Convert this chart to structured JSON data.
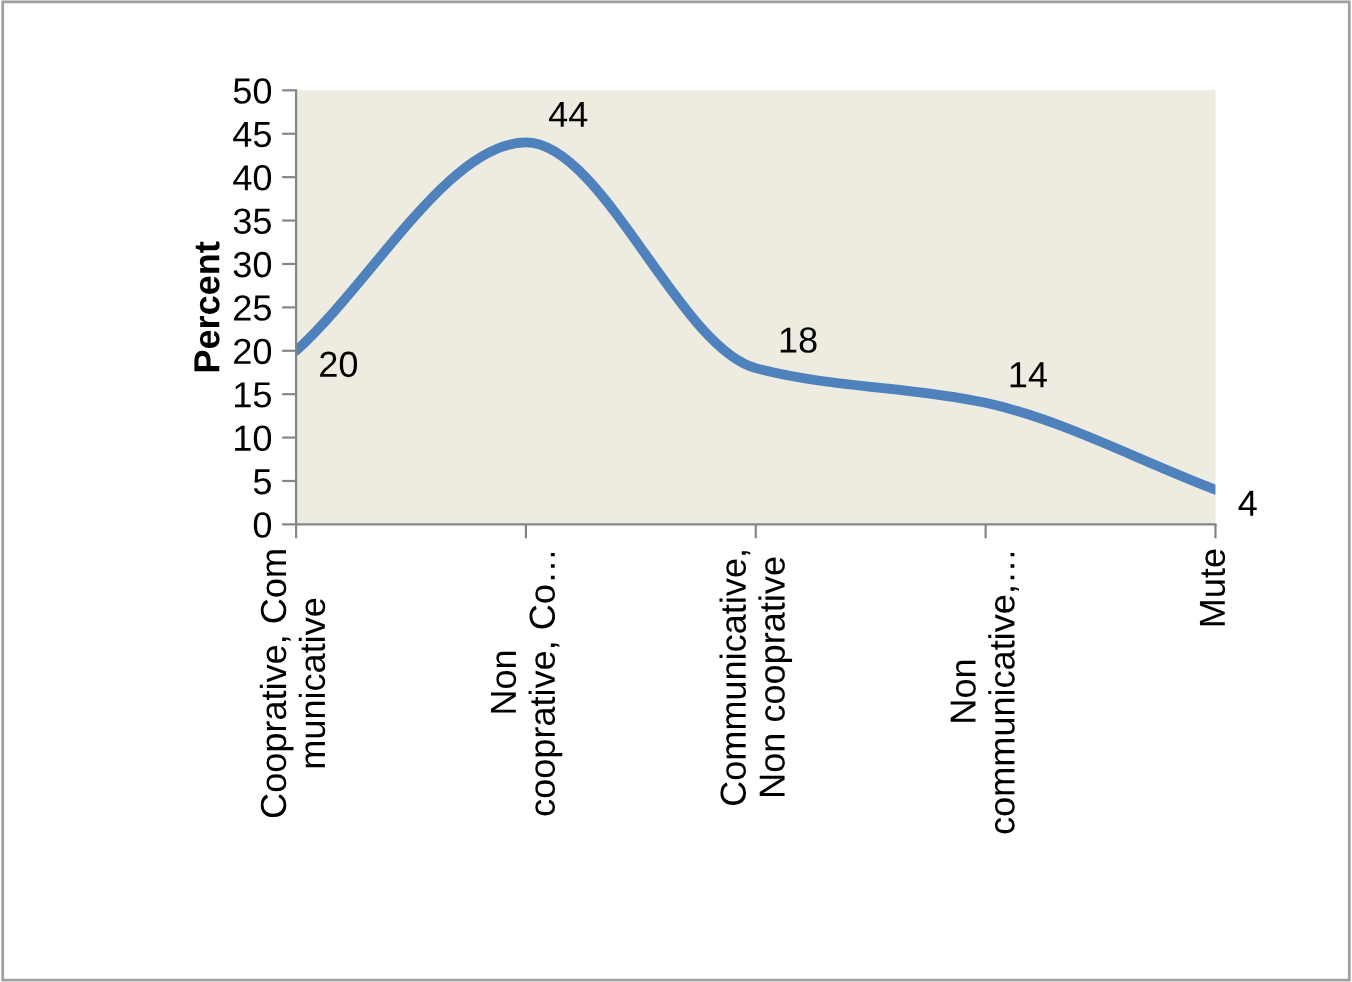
{
  "chart_data": {
    "type": "line",
    "ylabel": "Percent",
    "categories": [
      "Cooprative, Com\nmunicative",
      "Non\ncooprative, Co…",
      "Communicative,\nNon cooprative",
      "Non\ncommunicative,…",
      "Mute"
    ],
    "series": [
      {
        "color": "#4f81bd",
        "values": [
          20,
          44,
          18,
          14,
          4
        ]
      }
    ],
    "ylim": [
      0,
      50
    ],
    "yticks": [
      0,
      5,
      10,
      15,
      20,
      25,
      30,
      35,
      40,
      45,
      50
    ],
    "data_labels": true,
    "grid": false,
    "legend": false,
    "marker": "none",
    "line_style": "solid"
  }
}
